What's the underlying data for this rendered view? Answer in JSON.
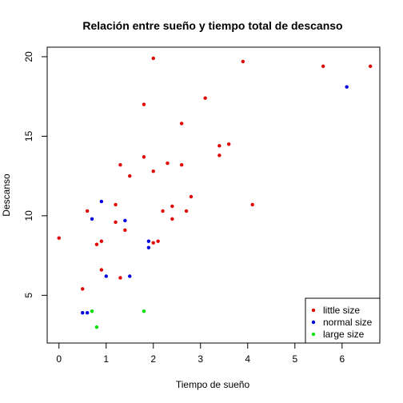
{
  "chart_data": {
    "type": "scatter",
    "title": "Relación entre sueño y tiempo total de descanso",
    "xlabel": "Tiempo de sueño",
    "ylabel": "Descanso",
    "xlim": [
      -0.25,
      6.8
    ],
    "ylim": [
      2.0,
      20.6
    ],
    "xticks": [
      0,
      1,
      2,
      3,
      4,
      5,
      6
    ],
    "yticks": [
      5,
      10,
      15,
      20
    ],
    "grid": false,
    "legend_position": "bottom-right",
    "series": [
      {
        "name": "little size",
        "color": "#e00000",
        "points": [
          [
            0.0,
            8.6
          ],
          [
            0.5,
            5.4
          ],
          [
            0.6,
            10.3
          ],
          [
            0.8,
            8.2
          ],
          [
            0.9,
            8.4
          ],
          [
            0.9,
            6.6
          ],
          [
            1.2,
            10.7
          ],
          [
            1.2,
            9.6
          ],
          [
            1.3,
            6.1
          ],
          [
            1.3,
            13.2
          ],
          [
            1.4,
            9.1
          ],
          [
            1.5,
            12.5
          ],
          [
            1.8,
            17.0
          ],
          [
            1.8,
            13.7
          ],
          [
            2.0,
            19.9
          ],
          [
            2.0,
            12.8
          ],
          [
            2.0,
            8.3
          ],
          [
            2.1,
            8.4
          ],
          [
            2.2,
            10.3
          ],
          [
            2.3,
            13.3
          ],
          [
            2.4,
            10.6
          ],
          [
            2.4,
            9.8
          ],
          [
            2.6,
            15.8
          ],
          [
            2.6,
            13.2
          ],
          [
            2.7,
            10.3
          ],
          [
            2.8,
            11.2
          ],
          [
            3.1,
            17.4
          ],
          [
            3.4,
            14.4
          ],
          [
            3.4,
            13.8
          ],
          [
            3.6,
            14.5
          ],
          [
            3.9,
            19.7
          ],
          [
            4.1,
            10.7
          ],
          [
            5.6,
            19.4
          ],
          [
            6.6,
            19.4
          ]
        ]
      },
      {
        "name": "normal size",
        "color": "#0000e0",
        "points": [
          [
            0.5,
            3.9
          ],
          [
            0.6,
            3.9
          ],
          [
            0.7,
            9.8
          ],
          [
            0.9,
            10.9
          ],
          [
            1.0,
            6.2
          ],
          [
            1.4,
            9.7
          ],
          [
            1.5,
            6.2
          ],
          [
            1.9,
            8.4
          ],
          [
            1.9,
            8.0
          ],
          [
            6.1,
            18.1
          ]
        ]
      },
      {
        "name": "large size",
        "color": "#00e000",
        "points": [
          [
            0.7,
            4.0
          ],
          [
            0.8,
            3.0
          ],
          [
            1.8,
            4.0
          ]
        ]
      }
    ]
  }
}
